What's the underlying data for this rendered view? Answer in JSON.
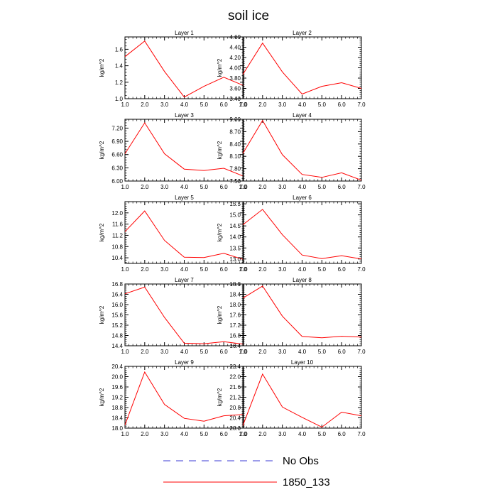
{
  "title": "soil ice",
  "legend": [
    {
      "label": "No Obs",
      "color": "#3b3bd6",
      "style": "dashed"
    },
    {
      "label": "1850_133",
      "color": "#ff0000",
      "style": "solid"
    }
  ],
  "colors": {
    "series": "#ff0000",
    "obs": "#3b3bd6",
    "axis": "#000000"
  },
  "chart_data": [
    {
      "type": "line",
      "title": "Layer 1",
      "ylabel": "kg/m^2",
      "x": [
        1,
        2,
        3,
        4,
        5,
        6,
        7
      ],
      "xticks": [
        "1.0",
        "2.0",
        "3.0",
        "4.0",
        "5.0",
        "6.0",
        "7.0"
      ],
      "xlim": [
        1,
        7
      ],
      "ylim": [
        1.0,
        1.75
      ],
      "yticks": [
        1.0,
        1.2,
        1.4,
        1.6
      ],
      "ytick_labels": [
        "1.0",
        "1.2",
        "1.4",
        "1.6"
      ],
      "series": [
        {
          "name": "1850_133",
          "values": [
            1.51,
            1.7,
            1.33,
            1.02,
            1.15,
            1.26,
            1.16
          ]
        }
      ]
    },
    {
      "type": "line",
      "title": "Layer 2",
      "ylabel": "kg/m^2",
      "x": [
        1,
        2,
        3,
        4,
        5,
        6,
        7
      ],
      "xticks": [
        "1.0",
        "2.0",
        "3.0",
        "4.0",
        "5.0",
        "6.0",
        "7.0"
      ],
      "xlim": [
        1,
        7
      ],
      "ylim": [
        3.4,
        4.6
      ],
      "yticks": [
        3.4,
        3.6,
        3.8,
        4.0,
        4.2,
        4.4,
        4.6
      ],
      "ytick_labels": [
        "3.40",
        "3.60",
        "3.80",
        "4.00",
        "4.20",
        "4.40",
        "4.60"
      ],
      "series": [
        {
          "name": "1850_133",
          "values": [
            3.87,
            4.48,
            3.92,
            3.49,
            3.64,
            3.71,
            3.6
          ]
        }
      ]
    },
    {
      "type": "line",
      "title": "Layer 3",
      "ylabel": "kg/m^2",
      "x": [
        1,
        2,
        3,
        4,
        5,
        6,
        7
      ],
      "xticks": [
        "1.0",
        "2.0",
        "3.0",
        "4.0",
        "5.0",
        "6.0",
        "7.0"
      ],
      "xlim": [
        1,
        7
      ],
      "ylim": [
        6.0,
        7.4
      ],
      "yticks": [
        6.0,
        6.3,
        6.6,
        6.9,
        7.2
      ],
      "ytick_labels": [
        "6.00",
        "6.30",
        "6.60",
        "6.90",
        "7.20"
      ],
      "series": [
        {
          "name": "1850_133",
          "values": [
            6.62,
            7.32,
            6.62,
            6.27,
            6.24,
            6.29,
            6.11
          ]
        }
      ]
    },
    {
      "type": "line",
      "title": "Layer 4",
      "ylabel": "kg/m^2",
      "x": [
        1,
        2,
        3,
        4,
        5,
        6,
        7
      ],
      "xticks": [
        "1.0",
        "2.0",
        "3.0",
        "4.0",
        "5.0",
        "6.0",
        "7.0"
      ],
      "xlim": [
        1,
        7
      ],
      "ylim": [
        7.5,
        9.0
      ],
      "yticks": [
        7.5,
        7.8,
        8.1,
        8.4,
        8.7,
        9.0
      ],
      "ytick_labels": [
        "7.50",
        "7.80",
        "8.10",
        "8.40",
        "8.70",
        "9.00"
      ],
      "series": [
        {
          "name": "1850_133",
          "values": [
            8.17,
            8.97,
            8.14,
            7.66,
            7.59,
            7.7,
            7.52
          ]
        }
      ]
    },
    {
      "type": "line",
      "title": "Layer 5",
      "ylabel": "kg/m^2",
      "x": [
        1,
        2,
        3,
        4,
        5,
        6,
        7
      ],
      "xticks": [
        "1.0",
        "2.0",
        "3.0",
        "4.0",
        "5.0",
        "6.0",
        "7.0"
      ],
      "xlim": [
        1,
        7
      ],
      "ylim": [
        10.2,
        12.4
      ],
      "yticks": [
        10.4,
        10.8,
        11.2,
        11.6,
        12.0
      ],
      "ytick_labels": [
        "10.4",
        "10.8",
        "11.2",
        "11.6",
        "12.0"
      ],
      "series": [
        {
          "name": "1850_133",
          "values": [
            11.33,
            12.07,
            11.02,
            10.42,
            10.41,
            10.56,
            10.34
          ]
        }
      ]
    },
    {
      "type": "line",
      "title": "Layer 6",
      "ylabel": "kg/m^2",
      "x": [
        1,
        2,
        3,
        4,
        5,
        6,
        7
      ],
      "xticks": [
        "1.0",
        "2.0",
        "3.0",
        "4.0",
        "5.0",
        "6.0",
        "7.0"
      ],
      "xlim": [
        1,
        7
      ],
      "ylim": [
        12.8,
        15.6
      ],
      "yticks": [
        13.0,
        13.5,
        14.0,
        14.5,
        15.0,
        15.5
      ],
      "ytick_labels": [
        "13.0",
        "13.5",
        "14.0",
        "14.5",
        "15.0",
        "15.5"
      ],
      "series": [
        {
          "name": "1850_133",
          "values": [
            14.55,
            15.25,
            14.1,
            13.18,
            13.02,
            13.15,
            13.0
          ]
        }
      ]
    },
    {
      "type": "line",
      "title": "Layer 7",
      "ylabel": "kg/m^2",
      "x": [
        1,
        2,
        3,
        4,
        5,
        6,
        7
      ],
      "xticks": [
        "1.0",
        "2.0",
        "3.0",
        "4.0",
        "5.0",
        "6.0",
        "7.0"
      ],
      "xlim": [
        1,
        7
      ],
      "ylim": [
        14.4,
        16.8
      ],
      "yticks": [
        14.4,
        14.8,
        15.2,
        15.6,
        16.0,
        16.4,
        16.8
      ],
      "ytick_labels": [
        "14.4",
        "14.8",
        "15.2",
        "15.6",
        "16.0",
        "16.4",
        "16.8"
      ],
      "series": [
        {
          "name": "1850_133",
          "values": [
            16.42,
            16.68,
            15.5,
            14.5,
            14.48,
            14.56,
            14.46
          ]
        }
      ]
    },
    {
      "type": "line",
      "title": "Layer 8",
      "ylabel": "kg/m^2",
      "x": [
        1,
        2,
        3,
        4,
        5,
        6,
        7
      ],
      "xticks": [
        "1.0",
        "2.0",
        "3.0",
        "4.0",
        "5.0",
        "6.0",
        "7.0"
      ],
      "xlim": [
        1,
        7
      ],
      "ylim": [
        16.4,
        18.8
      ],
      "yticks": [
        16.4,
        16.8,
        17.2,
        17.6,
        18.0,
        18.4,
        18.8
      ],
      "ytick_labels": [
        "16.4",
        "16.8",
        "17.2",
        "17.6",
        "18.0",
        "18.4",
        "18.8"
      ],
      "series": [
        {
          "name": "1850_133",
          "values": [
            18.25,
            18.72,
            17.55,
            16.76,
            16.71,
            16.77,
            16.74
          ]
        }
      ]
    },
    {
      "type": "line",
      "title": "Layer 9",
      "ylabel": "kg/m^2",
      "x": [
        1,
        2,
        3,
        4,
        5,
        6,
        7
      ],
      "xticks": [
        "1.0",
        "2.0",
        "3.0",
        "4.0",
        "5.0",
        "6.0",
        "7.0"
      ],
      "xlim": [
        1,
        7
      ],
      "ylim": [
        18.0,
        20.4
      ],
      "yticks": [
        18.0,
        18.4,
        18.8,
        19.2,
        19.6,
        20.0,
        20.4
      ],
      "ytick_labels": [
        "18.0",
        "18.4",
        "18.8",
        "19.2",
        "19.6",
        "20.0",
        "20.4"
      ],
      "series": [
        {
          "name": "1850_133",
          "values": [
            18.12,
            20.18,
            18.92,
            18.38,
            18.27,
            18.48,
            18.53
          ]
        }
      ]
    },
    {
      "type": "line",
      "title": "Layer 10",
      "ylabel": "kg/m^2",
      "x": [
        1,
        2,
        3,
        4,
        5,
        6,
        7
      ],
      "xticks": [
        "1.0",
        "2.0",
        "3.0",
        "4.0",
        "5.0",
        "6.0",
        "7.0"
      ],
      "xlim": [
        1,
        7
      ],
      "ylim": [
        20.0,
        22.4
      ],
      "yticks": [
        20.0,
        20.4,
        20.8,
        21.2,
        21.6,
        22.0,
        22.4
      ],
      "ytick_labels": [
        "20.0",
        "20.4",
        "20.8",
        "21.2",
        "21.6",
        "22.0",
        "22.4"
      ],
      "series": [
        {
          "name": "1850_133",
          "values": [
            20.1,
            22.1,
            20.82,
            20.42,
            20.04,
            20.62,
            20.48
          ]
        }
      ]
    }
  ]
}
